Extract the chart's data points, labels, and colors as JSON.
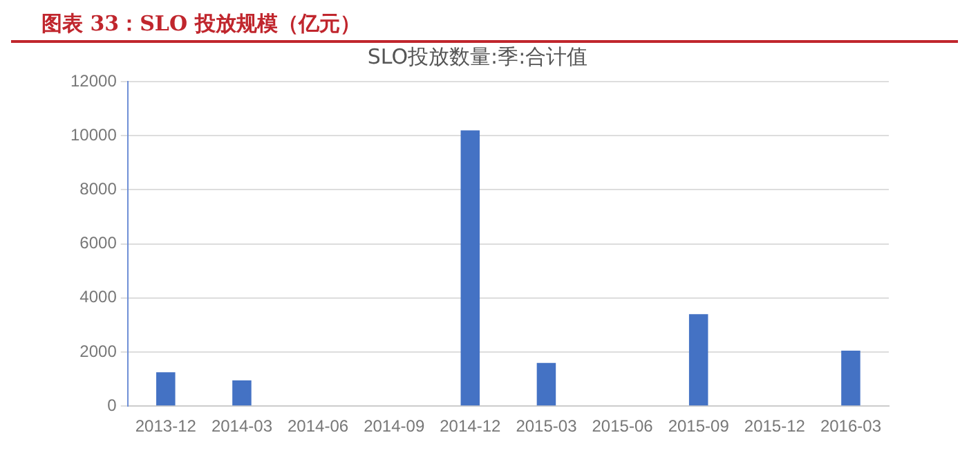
{
  "chart_data": {
    "type": "bar",
    "title": "图表 33：SLO 投放规模（亿元）",
    "subtitle": "SLO投放数量:季:合计值",
    "categories": [
      "2013-12",
      "2014-03",
      "2014-06",
      "2014-09",
      "2014-12",
      "2015-03",
      "2015-06",
      "2015-09",
      "2015-12",
      "2016-03"
    ],
    "values": [
      1250,
      950,
      null,
      null,
      10200,
      1600,
      null,
      3400,
      null,
      2050
    ],
    "color": "#4472c4",
    "ylim": [
      0,
      12000
    ],
    "yticks": [
      0,
      2000,
      4000,
      6000,
      8000,
      10000,
      12000
    ],
    "grid": "y"
  }
}
